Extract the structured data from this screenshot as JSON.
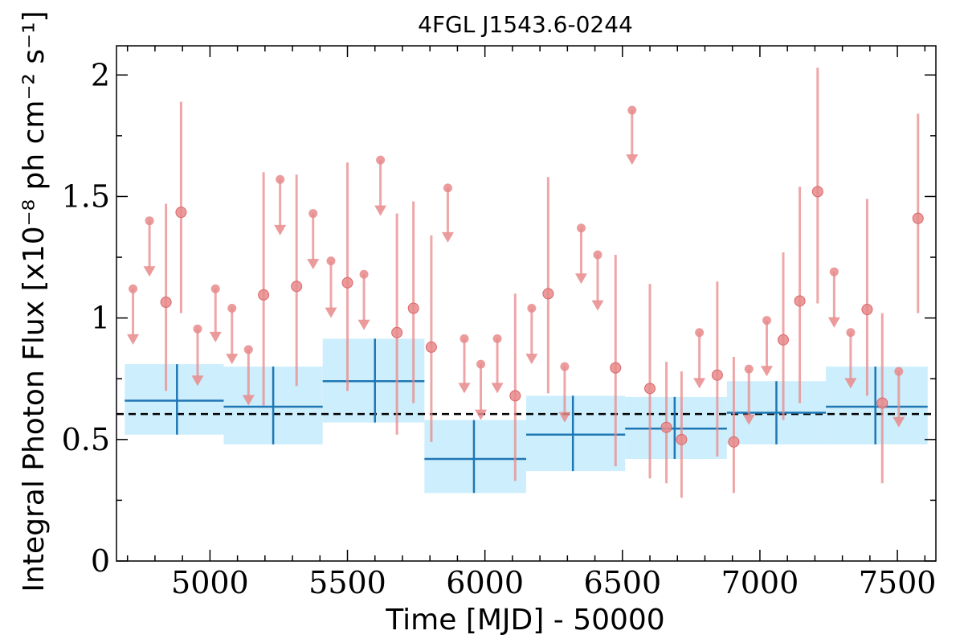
{
  "chart_data": {
    "type": "scatter",
    "title": "4FGL J1543.6-0244",
    "xlabel": "Time [MJD] - 50000",
    "ylabel": "Integral Photon Flux [x10⁻⁸ ph cm⁻² s⁻¹]",
    "xlim": [
      4660,
      7640
    ],
    "ylim": [
      0,
      2.12
    ],
    "x_ticks": [
      5000,
      5500,
      6000,
      6500,
      7000,
      7500
    ],
    "x_tick_labels": [
      "5000",
      "5500",
      "6000",
      "6500",
      "7000",
      "7500"
    ],
    "y_ticks": [
      0,
      0.5,
      1,
      1.5,
      2
    ],
    "y_tick_labels": [
      "0",
      "0.5",
      "1",
      "1.5",
      "2"
    ],
    "mean_flux": 0.605,
    "colors": {
      "detections": "#e8898b",
      "long_bins": "#1f77b4",
      "long_bin_band": "#cdeefc",
      "mean_line": "#000000"
    },
    "long_bins": [
      {
        "x": 4880,
        "x_lo": 4690,
        "x_hi": 5050,
        "y": 0.66,
        "y_lo": 0.52,
        "y_hi": 0.81
      },
      {
        "x": 5230,
        "x_lo": 5050,
        "x_hi": 5410,
        "y": 0.635,
        "y_lo": 0.48,
        "y_hi": 0.8
      },
      {
        "x": 5600,
        "x_lo": 5410,
        "x_hi": 5780,
        "y": 0.74,
        "y_lo": 0.57,
        "y_hi": 0.915
      },
      {
        "x": 5960,
        "x_lo": 5780,
        "x_hi": 6150,
        "y": 0.42,
        "y_lo": 0.28,
        "y_hi": 0.58
      },
      {
        "x": 6320,
        "x_lo": 6150,
        "x_hi": 6510,
        "y": 0.52,
        "y_lo": 0.37,
        "y_hi": 0.68
      },
      {
        "x": 6690,
        "x_lo": 6510,
        "x_hi": 6880,
        "y": 0.545,
        "y_lo": 0.42,
        "y_hi": 0.675
      },
      {
        "x": 7060,
        "x_lo": 6880,
        "x_hi": 7240,
        "y": 0.61,
        "y_lo": 0.48,
        "y_hi": 0.74
      },
      {
        "x": 7420,
        "x_lo": 7240,
        "x_hi": 7610,
        "y": 0.635,
        "y_lo": 0.48,
        "y_hi": 0.8
      }
    ],
    "detections": [
      {
        "x": 4840,
        "y": 1.065,
        "y_lo": 0.7,
        "y_hi": 1.47
      },
      {
        "x": 4895,
        "y": 1.435,
        "y_lo": 1.02,
        "y_hi": 1.89
      },
      {
        "x": 5195,
        "y": 1.095,
        "y_lo": 0.64,
        "y_hi": 1.6
      },
      {
        "x": 5315,
        "y": 1.13,
        "y_lo": 0.72,
        "y_hi": 1.59
      },
      {
        "x": 5500,
        "y": 1.145,
        "y_lo": 0.7,
        "y_hi": 1.64
      },
      {
        "x": 5680,
        "y": 0.94,
        "y_lo": 0.52,
        "y_hi": 1.43
      },
      {
        "x": 5740,
        "y": 1.04,
        "y_lo": 0.65,
        "y_hi": 1.48
      },
      {
        "x": 5805,
        "y": 0.88,
        "y_lo": 0.49,
        "y_hi": 1.34
      },
      {
        "x": 6110,
        "y": 0.68,
        "y_lo": 0.33,
        "y_hi": 1.1
      },
      {
        "x": 6230,
        "y": 1.1,
        "y_lo": 0.69,
        "y_hi": 1.58
      },
      {
        "x": 6475,
        "y": 0.795,
        "y_lo": 0.39,
        "y_hi": 1.26
      },
      {
        "x": 6600,
        "y": 0.71,
        "y_lo": 0.34,
        "y_hi": 1.14
      },
      {
        "x": 6660,
        "y": 0.55,
        "y_lo": 0.32,
        "y_hi": 0.82
      },
      {
        "x": 6715,
        "y": 0.5,
        "y_lo": 0.26,
        "y_hi": 0.78
      },
      {
        "x": 6845,
        "y": 0.765,
        "y_lo": 0.43,
        "y_hi": 1.15
      },
      {
        "x": 6905,
        "y": 0.49,
        "y_lo": 0.28,
        "y_hi": 0.84
      },
      {
        "x": 7085,
        "y": 0.91,
        "y_lo": 0.58,
        "y_hi": 1.27
      },
      {
        "x": 7145,
        "y": 1.07,
        "y_lo": 0.65,
        "y_hi": 1.54
      },
      {
        "x": 7210,
        "y": 1.52,
        "y_lo": 1.06,
        "y_hi": 2.03
      },
      {
        "x": 7390,
        "y": 1.035,
        "y_lo": 0.68,
        "y_hi": 1.49
      },
      {
        "x": 7445,
        "y": 0.65,
        "y_lo": 0.32,
        "y_hi": 1.02
      },
      {
        "x": 7575,
        "y": 1.41,
        "y_lo": 1.02,
        "y_hi": 1.84
      }
    ],
    "upper_limits": [
      {
        "x": 4720,
        "y": 1.12,
        "tip": 0.89
      },
      {
        "x": 4780,
        "y": 1.4,
        "tip": 1.17
      },
      {
        "x": 4955,
        "y": 0.955,
        "tip": 0.72
      },
      {
        "x": 5020,
        "y": 1.12,
        "tip": 0.9
      },
      {
        "x": 5080,
        "y": 1.04,
        "tip": 0.81
      },
      {
        "x": 5140,
        "y": 0.87,
        "tip": 0.64
      },
      {
        "x": 5255,
        "y": 1.57,
        "tip": 1.34
      },
      {
        "x": 5375,
        "y": 1.43,
        "tip": 1.2
      },
      {
        "x": 5440,
        "y": 1.235,
        "tip": 1.0
      },
      {
        "x": 5560,
        "y": 1.18,
        "tip": 0.95
      },
      {
        "x": 5620,
        "y": 1.65,
        "tip": 1.42
      },
      {
        "x": 5865,
        "y": 1.535,
        "tip": 1.31
      },
      {
        "x": 5925,
        "y": 0.915,
        "tip": 0.69
      },
      {
        "x": 5985,
        "y": 0.81,
        "tip": 0.58
      },
      {
        "x": 6045,
        "y": 0.915,
        "tip": 0.69
      },
      {
        "x": 6170,
        "y": 1.04,
        "tip": 0.81
      },
      {
        "x": 6290,
        "y": 0.8,
        "tip": 0.57
      },
      {
        "x": 6350,
        "y": 1.37,
        "tip": 1.14
      },
      {
        "x": 6410,
        "y": 1.26,
        "tip": 1.03
      },
      {
        "x": 6535,
        "y": 1.855,
        "tip": 1.63
      },
      {
        "x": 6780,
        "y": 0.94,
        "tip": 0.71
      },
      {
        "x": 6960,
        "y": 0.79,
        "tip": 0.56
      },
      {
        "x": 7025,
        "y": 0.99,
        "tip": 0.76
      },
      {
        "x": 7270,
        "y": 1.19,
        "tip": 0.96
      },
      {
        "x": 7330,
        "y": 0.94,
        "tip": 0.71
      },
      {
        "x": 7505,
        "y": 0.78,
        "tip": 0.55
      }
    ]
  }
}
